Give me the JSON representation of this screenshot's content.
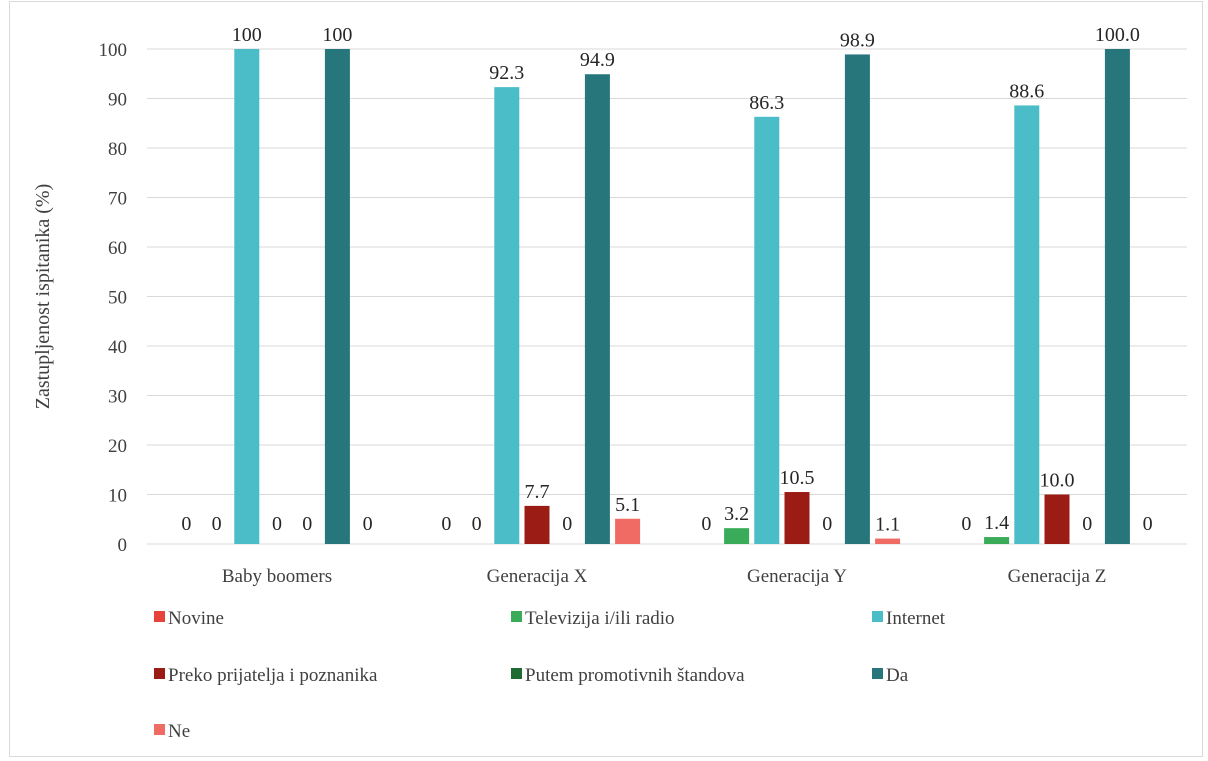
{
  "chart_data": {
    "type": "bar",
    "title": "",
    "xlabel": "",
    "ylabel": "Zastupljenost ispitanika (%)",
    "ylim": [
      0,
      100
    ],
    "yticks": [
      0,
      10,
      20,
      30,
      40,
      50,
      60,
      70,
      80,
      90,
      100
    ],
    "grid": true,
    "legend_position": "bottom",
    "categories": [
      "Baby boomers",
      "Generacija X",
      "Generacija Y",
      "Generacija Z"
    ],
    "series": [
      {
        "name": "Novine",
        "color": "#e8433a",
        "values": [
          0,
          0,
          0,
          0
        ],
        "labels": [
          "0",
          "0",
          "0",
          "0"
        ]
      },
      {
        "name": "Televizija i/ili radio",
        "color": "#3aab58",
        "values": [
          0,
          0,
          3.2,
          1.4
        ],
        "labels": [
          "0",
          "0",
          "3.2",
          "1.4"
        ]
      },
      {
        "name": "Internet",
        "color": "#4abdc8",
        "values": [
          100,
          92.3,
          86.3,
          88.6
        ],
        "labels": [
          "100",
          "92.3",
          "86.3",
          "88.6"
        ]
      },
      {
        "name": "Preko prijatelja i poznanika",
        "color": "#9b1c14",
        "values": [
          0,
          7.7,
          10.5,
          10.0
        ],
        "labels": [
          "0",
          "7.7",
          "10.5",
          "10.0"
        ]
      },
      {
        "name": "Putem promotivnih štandova",
        "color": "#1f6b34",
        "values": [
          0,
          0,
          0,
          0
        ],
        "labels": [
          "0",
          "0",
          "0",
          "0"
        ]
      },
      {
        "name": "Da",
        "color": "#26767b",
        "values": [
          100,
          94.9,
          98.9,
          100.0
        ],
        "labels": [
          "100",
          "94.9",
          "98.9",
          "100.0"
        ]
      },
      {
        "name": "Ne",
        "color": "#ef6b63",
        "values": [
          0,
          5.1,
          1.1,
          0
        ],
        "labels": [
          "0",
          "5.1",
          "1.1",
          "0"
        ]
      }
    ]
  },
  "colors": {
    "grid": "#d9d9d9",
    "axis_text": "#404040",
    "label_text": "#262626"
  }
}
